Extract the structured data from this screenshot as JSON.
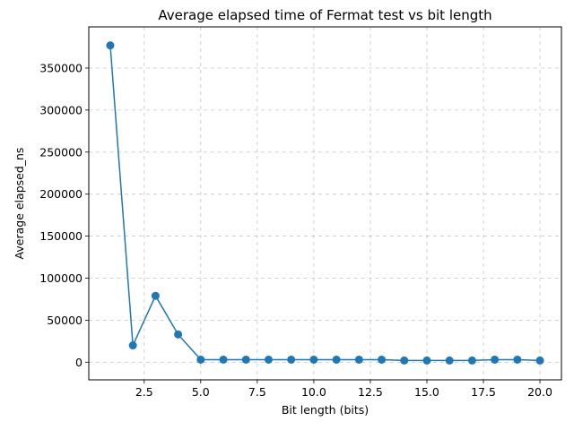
{
  "chart_data": {
    "type": "line",
    "title": "Average elapsed time of Fermat test vs bit length",
    "xlabel": "Bit length (bits)",
    "ylabel": "Average elapsed_ns",
    "xlim": [
      0.05,
      20.95
    ],
    "ylim": [
      -21000,
      399000
    ],
    "xticks": [
      2.5,
      5.0,
      7.5,
      10.0,
      12.5,
      15.0,
      17.5,
      20.0
    ],
    "xtick_labels": [
      "2.5",
      "5.0",
      "7.5",
      "10.0",
      "12.5",
      "15.0",
      "17.5",
      "20.0"
    ],
    "yticks": [
      0,
      50000,
      100000,
      150000,
      200000,
      250000,
      300000,
      350000
    ],
    "ytick_labels": [
      "0",
      "50000",
      "100000",
      "150000",
      "200000",
      "250000",
      "300000",
      "350000"
    ],
    "grid": true,
    "series": [
      {
        "color": "#1f77b4",
        "marker": "circle",
        "x": [
          1,
          2,
          3,
          4,
          5,
          6,
          7,
          8,
          9,
          10,
          11,
          12,
          13,
          14,
          15,
          16,
          17,
          18,
          19,
          20
        ],
        "y": [
          377000,
          20000,
          79000,
          33000,
          3000,
          3000,
          3000,
          3000,
          3000,
          3000,
          3000,
          3000,
          3000,
          2000,
          2000,
          2000,
          2000,
          3000,
          3000,
          2000
        ]
      }
    ]
  }
}
